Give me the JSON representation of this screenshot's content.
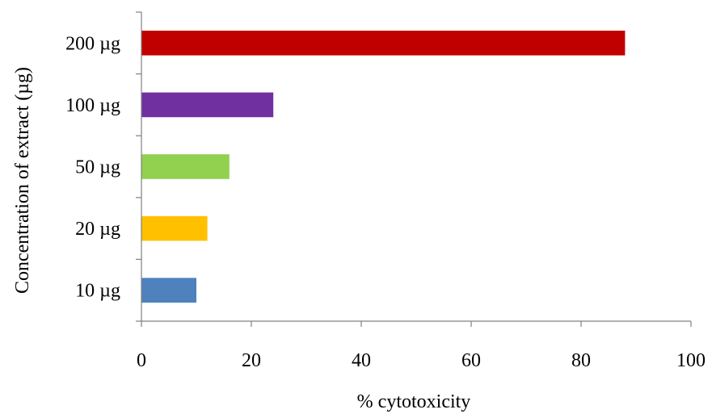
{
  "chart_data": {
    "type": "bar",
    "orientation": "horizontal",
    "categories": [
      "10 µg",
      "20 µg",
      "50 µg",
      "100 µg",
      "200 µg"
    ],
    "values": [
      10,
      12,
      16,
      24,
      88
    ],
    "bar_colors": [
      "#4F81BD",
      "#FFC000",
      "#92D050",
      "#7030A0",
      "#C00000"
    ],
    "xlabel": "% cytotoxicity",
    "ylabel": "Concentration of extract (µg)",
    "xlim": [
      0,
      100
    ],
    "x_ticks": [
      "0",
      "20",
      "40",
      "60",
      "80",
      "100"
    ],
    "grid": false,
    "legend": "none"
  }
}
